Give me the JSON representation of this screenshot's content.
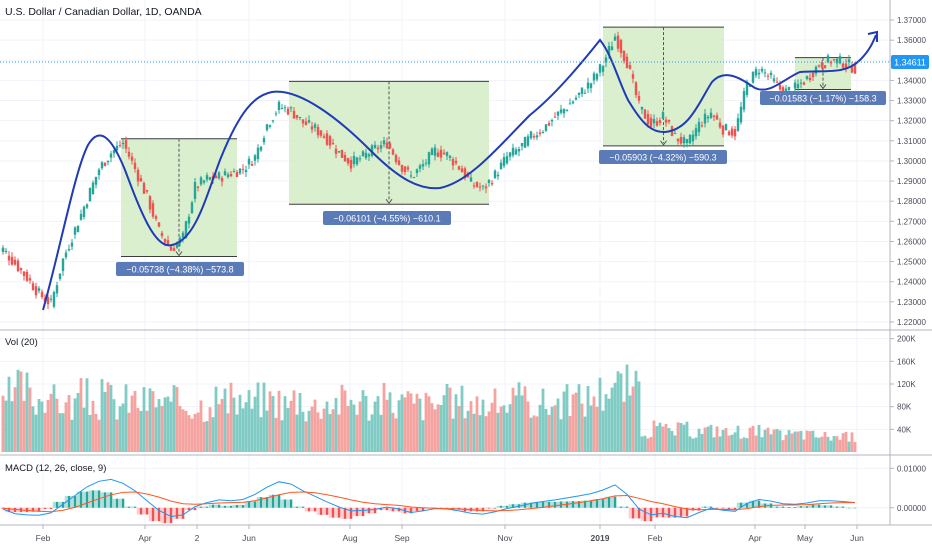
{
  "header": {
    "title": "U.S. Dollar / Canadian Dollar, 1D, OANDA"
  },
  "colors": {
    "up": "#26a69a",
    "down": "#ef5350",
    "vol_up": "#80cbc4",
    "vol_down": "#f5a3a0",
    "range_fill": "#d4ecc6",
    "range_border": "#3d3d3d",
    "curve": "#1f3bb5",
    "label_bg": "#5a7ab8",
    "price_label_bg": "#2196f3",
    "macd_line": "#2196f3",
    "signal_line": "#ff5722"
  },
  "chart_data": [
    {
      "type": "line",
      "title": "U.S. Dollar / Canadian Dollar, 1D, OANDA",
      "subtitle": "candlestick price chart",
      "x_ticks": [
        "Feb",
        "Apr",
        "2",
        "Jun",
        "Aug",
        "Sep",
        "Nov",
        "2019",
        "Feb",
        "Apr",
        "May",
        "Jun"
      ],
      "y_ticks": [
        "1.37000",
        "1.36000",
        "1.35000",
        "1.34000",
        "1.33000",
        "1.32000",
        "1.31000",
        "1.30000",
        "1.29000",
        "1.28000",
        "1.27000",
        "1.26000",
        "1.25000",
        "1.24000",
        "1.23000",
        "1.22000"
      ],
      "ylim": [
        1.2175,
        1.3735
      ],
      "last_price": "1.34611",
      "series": [
        {
          "type": "candlestick",
          "x": [
            "2018-01-02",
            "2018-01-09",
            "2018-01-16",
            "2018-01-23",
            "2018-01-31",
            "2018-02-07",
            "2018-02-14",
            "2018-02-21",
            "2018-03-01",
            "2018-03-08",
            "2018-03-15",
            "2018-03-23",
            "2018-03-30",
            "2018-04-06",
            "2018-04-13",
            "2018-04-20",
            "2018-04-27",
            "2018-05-04",
            "2018-05-11",
            "2018-05-18",
            "2018-05-25",
            "2018-06-01",
            "2018-06-08",
            "2018-06-15",
            "2018-06-22",
            "2018-06-29",
            "2018-07-06",
            "2018-07-13",
            "2018-07-20",
            "2018-07-27",
            "2018-08-03",
            "2018-08-10",
            "2018-08-17",
            "2018-08-24",
            "2018-08-31",
            "2018-09-07",
            "2018-09-14",
            "2018-09-21",
            "2018-09-28",
            "2018-10-05",
            "2018-10-12",
            "2018-10-19",
            "2018-10-26",
            "2018-11-02",
            "2018-11-09",
            "2018-11-16",
            "2018-11-23",
            "2018-11-30",
            "2018-12-07",
            "2018-12-14",
            "2018-12-21",
            "2018-12-31",
            "2019-01-07",
            "2019-01-14",
            "2019-01-21",
            "2019-01-28",
            "2019-02-04",
            "2019-02-11",
            "2019-02-18",
            "2019-02-25",
            "2019-03-04",
            "2019-03-11",
            "2019-03-18",
            "2019-03-25",
            "2019-04-01",
            "2019-04-08",
            "2019-04-15",
            "2019-04-22",
            "2019-04-29",
            "2019-05-06",
            "2019-05-13",
            "2019-05-20"
          ],
          "values": [
            1.256,
            1.249,
            1.242,
            1.234,
            1.229,
            1.251,
            1.266,
            1.281,
            1.296,
            1.304,
            1.309,
            1.296,
            1.282,
            1.265,
            1.256,
            1.262,
            1.287,
            1.291,
            1.292,
            1.294,
            1.296,
            1.302,
            1.318,
            1.327,
            1.325,
            1.319,
            1.316,
            1.311,
            1.304,
            1.299,
            1.302,
            1.306,
            1.309,
            1.299,
            1.292,
            1.298,
            1.305,
            1.303,
            1.297,
            1.289,
            1.286,
            1.293,
            1.302,
            1.306,
            1.312,
            1.316,
            1.322,
            1.327,
            1.333,
            1.339,
            1.348,
            1.362,
            1.349,
            1.327,
            1.318,
            1.322,
            1.312,
            1.308,
            1.318,
            1.324,
            1.316,
            1.314,
            1.338,
            1.346,
            1.341,
            1.334,
            1.336,
            1.341,
            1.348,
            1.35,
            1.349,
            1.346
          ]
        }
      ],
      "ranges": [
        {
          "label": "−0.05738 (−4.38%) −573.8"
        },
        {
          "label": "−0.06101 (−4.55%) −610.1"
        },
        {
          "label": "−0.05903 (−4.32%) −590.3"
        },
        {
          "label": "−0.01583 (−1.17%) −158.3"
        }
      ]
    },
    {
      "type": "bar",
      "title": "Vol (20)",
      "y_ticks": [
        "200K",
        "160K",
        "120K",
        "80K",
        "40K"
      ],
      "ylim": [
        0,
        210000
      ],
      "series": [
        {
          "name": "Vol",
          "values": [
            78000,
            105000,
            118000,
            98000,
            112000,
            95000,
            88000,
            103000,
            92000,
            101000,
            89000,
            97000,
            94000,
            99000,
            86000,
            92000,
            90000,
            88000,
            101000,
            94000,
            96000,
            92000,
            99000,
            97000,
            88000,
            102000,
            85000,
            92000,
            94000,
            96000,
            98000,
            89000,
            96000,
            91000,
            93000,
            90000,
            87000,
            94000,
            92000,
            96000,
            90000,
            88000,
            93000,
            95000,
            97000,
            91000,
            90000,
            94000,
            98000,
            100000,
            112000,
            128000,
            124000,
            114000,
            40000,
            44000,
            40000,
            42000,
            38000,
            40000,
            42000,
            36000,
            39000,
            38000,
            35000,
            32000,
            33000,
            34000,
            31000,
            30000,
            29000,
            28000
          ]
        }
      ]
    },
    {
      "type": "line",
      "title": "MACD (12, 26, close, 9)",
      "y_ticks": [
        "0.01000",
        "0.00000"
      ],
      "ylim": [
        -0.0036,
        0.0121
      ],
      "series": [
        {
          "name": "MACD",
          "values": [
            -0.0003,
            -0.0015,
            -0.0018,
            -0.0019,
            -0.0013,
            0.0009,
            0.0031,
            0.0053,
            0.0067,
            0.0072,
            0.0062,
            0.0043,
            0.0018,
            -0.0007,
            -0.0022,
            -0.0018,
            0.0003,
            0.0013,
            0.002,
            0.0018,
            0.0021,
            0.0034,
            0.0052,
            0.0066,
            0.006,
            0.0043,
            0.0029,
            0.0015,
            0.0002,
            -0.0008,
            -0.0007,
            -0.0004,
            0.0002,
            -0.0003,
            -0.0012,
            -0.0008,
            -0.0002,
            -0.0003,
            -0.0008,
            -0.0014,
            -0.0016,
            -0.001,
            -0.0002,
            0.0004,
            0.0011,
            0.0016,
            0.002,
            0.0025,
            0.003,
            0.0036,
            0.0045,
            0.0058,
            0.0034,
            -0.0003,
            -0.0018,
            -0.0014,
            -0.0022,
            -0.0025,
            -0.0012,
            -0.0001,
            -0.0006,
            -0.0009,
            0.0011,
            0.0021,
            0.0017,
            0.001,
            0.0009,
            0.0012,
            0.0018,
            0.0018,
            0.0016,
            0.0013
          ]
        },
        {
          "name": "Signal",
          "values": [
            -0.0001,
            -0.0004,
            -0.0007,
            -0.0009,
            -0.001,
            -0.0006,
            0.0001,
            0.0012,
            0.0023,
            0.0033,
            0.0039,
            0.004,
            0.0035,
            0.0027,
            0.0017,
            0.001,
            0.0009,
            0.001,
            0.0012,
            0.0013,
            0.0014,
            0.0018,
            0.0025,
            0.0033,
            0.0039,
            0.004,
            0.0038,
            0.0033,
            0.0027,
            0.002,
            0.0014,
            0.001,
            0.0008,
            0.0006,
            0.0002,
            0.0,
            -0.0001,
            -0.0002,
            -0.0003,
            -0.0005,
            -0.0007,
            -0.0008,
            -0.0007,
            -0.0005,
            -0.0002,
            0.0001,
            0.0005,
            0.0009,
            0.0013,
            0.0018,
            0.0023,
            0.003,
            0.0031,
            0.0024,
            0.0016,
            0.001,
            0.0003,
            -0.0003,
            -0.0005,
            -0.0004,
            -0.0004,
            -0.0005,
            -0.0002,
            0.0003,
            0.0006,
            0.0007,
            0.0007,
            0.0008,
            0.001,
            0.0012,
            0.0013,
            0.0013
          ]
        }
      ]
    }
  ]
}
